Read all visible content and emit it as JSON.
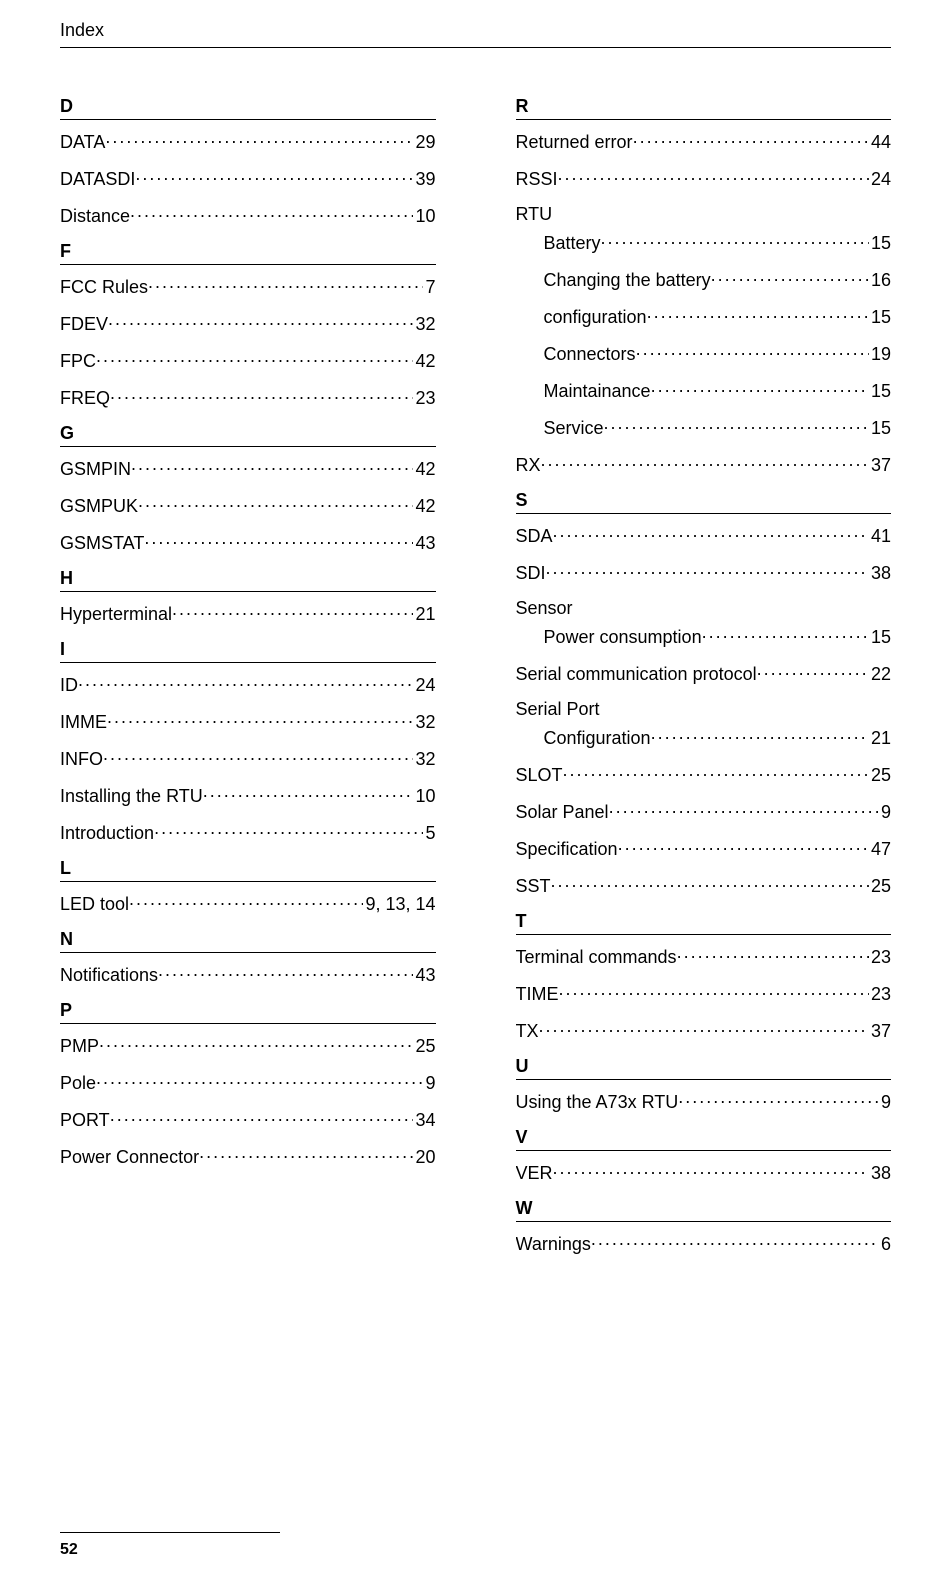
{
  "header": "Index",
  "footer_page": "52",
  "left": [
    {
      "letter": "D"
    },
    {
      "label": "DATA",
      "page": "29"
    },
    {
      "label": "DATASDI",
      "page": "39"
    },
    {
      "label": "Distance",
      "page": "10",
      "gap": true
    },
    {
      "letter": "F"
    },
    {
      "label": "FCC Rules",
      "page": "7"
    },
    {
      "label": "FDEV",
      "page": "32"
    },
    {
      "label": "FPC",
      "page": "42",
      "gap": true
    },
    {
      "label": "FREQ",
      "page": "23",
      "gap": true
    },
    {
      "letter": "G"
    },
    {
      "label": "GSMPIN",
      "page": "42",
      "gap": true
    },
    {
      "label": "GSMPUK",
      "page": "42"
    },
    {
      "label": "GSMSTAT",
      "page": "43",
      "gap": true
    },
    {
      "letter": "H"
    },
    {
      "label": "Hyperterminal",
      "page": "21",
      "gap": true
    },
    {
      "letter": "I"
    },
    {
      "label": "ID",
      "page": "24",
      "gap": true
    },
    {
      "label": "IMME",
      "page": "32",
      "gap": true
    },
    {
      "label": "INFO",
      "page": "32",
      "gap": true
    },
    {
      "label": "Installing the RTU",
      "page": "10"
    },
    {
      "label": "Introduction",
      "page": "5"
    },
    {
      "letter": "L"
    },
    {
      "label": "LED tool",
      "page": "9, 13, 14"
    },
    {
      "letter": "N"
    },
    {
      "label": "Notifications",
      "page": "43"
    },
    {
      "letter": "P"
    },
    {
      "label": "PMP",
      "page": "25"
    },
    {
      "label": "Pole",
      "page": "9",
      "gap": true
    },
    {
      "label": "PORT",
      "page": "34",
      "gap": true
    },
    {
      "label": "Power  Connector",
      "page": "20"
    }
  ],
  "right": [
    {
      "letter": "R"
    },
    {
      "label": "Returned error",
      "page": " 44",
      "gap": true
    },
    {
      "label": "RSSI",
      "page": " 24",
      "gap": true
    },
    {
      "parent": "RTU"
    },
    {
      "label": "Battery",
      "page": " 15",
      "sub": true,
      "gap": true
    },
    {
      "label": "Changing the battery",
      "page": " 16",
      "sub": true,
      "gap": true
    },
    {
      "label": "configuration",
      "page": " 15",
      "sub": true,
      "gap": true
    },
    {
      "label": "Connectors",
      "page": " 19",
      "sub": true,
      "gap": true
    },
    {
      "label": "Maintainance",
      "page": " 15",
      "sub": true,
      "gap": true
    },
    {
      "label": "Service",
      "page": " 15",
      "sub": true
    },
    {
      "label": "RX",
      "page": " 37"
    },
    {
      "letter": "S"
    },
    {
      "label": "SDA",
      "page": " 41",
      "gap": true
    },
    {
      "label": "SDI",
      "page": " 38"
    },
    {
      "parent": "Sensor"
    },
    {
      "label": "Power consumption",
      "page": " 15",
      "sub": true
    },
    {
      "label": "Serial communication protocol",
      "page": " 22",
      "gap": true
    },
    {
      "parent": "Serial Port"
    },
    {
      "label": "Configuration",
      "page": " 21",
      "sub": true,
      "gap": true
    },
    {
      "label": "SLOT",
      "page": " 25",
      "gap": true
    },
    {
      "label": "Solar Panel",
      "page": " 9",
      "gap": true
    },
    {
      "label": "Specification",
      "page": " 47",
      "gap": true
    },
    {
      "label": "SST",
      "page": " 25"
    },
    {
      "letter": "T"
    },
    {
      "label": "Terminal commands",
      "page": " 23",
      "gap": true
    },
    {
      "label": "TIME",
      "page": " 23",
      "gap": true
    },
    {
      "label": "TX",
      "page": " 37",
      "gap": true
    },
    {
      "letter": "U"
    },
    {
      "label": "Using the A73x RTU",
      "page": " 9"
    },
    {
      "letter": "V"
    },
    {
      "label": "VER",
      "page": " 38",
      "gap": true
    },
    {
      "letter": "W"
    },
    {
      "label": "Warnings",
      "page": " 6"
    }
  ]
}
